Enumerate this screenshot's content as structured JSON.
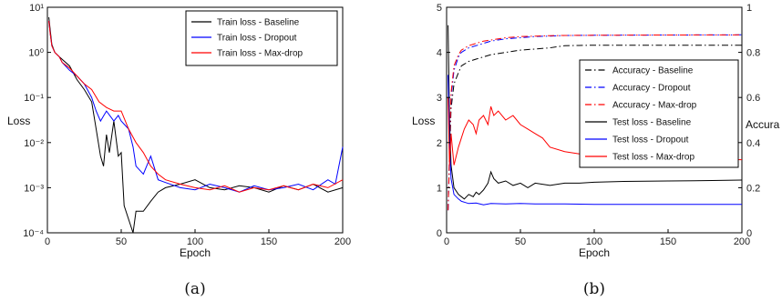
{
  "chart_data": [
    {
      "type": "line",
      "caption": "(a)",
      "xlabel": "Epoch",
      "ylabel": "Loss",
      "xlim": [
        0,
        200
      ],
      "ylim": [
        0.0001,
        10
      ],
      "yscale": "log",
      "x_ticks": [
        0,
        50,
        100,
        150,
        200
      ],
      "y_tick_labels": [
        "10⁻⁴",
        "10⁻³",
        "10⁻²",
        "10⁻¹",
        "10⁰",
        "10¹"
      ],
      "grid": false,
      "legend_position": "top-right",
      "series": [
        {
          "name": "Train loss - Baseline",
          "color": "#000000",
          "x": [
            1,
            2,
            3,
            5,
            8,
            10,
            15,
            20,
            25,
            30,
            33,
            36,
            38,
            40,
            42,
            45,
            48,
            50,
            52,
            55,
            58,
            60,
            65,
            70,
            75,
            80,
            90,
            100,
            110,
            120,
            130,
            140,
            150,
            160,
            170,
            180,
            190,
            200
          ],
          "y": [
            6,
            3,
            1.5,
            1,
            0.8,
            0.7,
            0.5,
            0.25,
            0.15,
            0.08,
            0.02,
            0.005,
            0.003,
            0.015,
            0.006,
            0.03,
            0.005,
            0.006,
            0.0004,
            0.0002,
            0.0001,
            0.0003,
            0.0003,
            0.0005,
            0.0008,
            0.001,
            0.0012,
            0.0015,
            0.001,
            0.0009,
            0.0011,
            0.001,
            0.0008,
            0.0011,
            0.0009,
            0.0012,
            0.0008,
            0.001
          ]
        },
        {
          "name": "Train loss - Dropout",
          "color": "#0000ff",
          "x": [
            1,
            2,
            3,
            5,
            8,
            10,
            15,
            20,
            25,
            30,
            33,
            36,
            40,
            45,
            48,
            50,
            55,
            58,
            60,
            65,
            70,
            75,
            80,
            90,
            100,
            110,
            120,
            130,
            140,
            150,
            160,
            170,
            180,
            190,
            195,
            200
          ],
          "y": [
            5,
            2.5,
            1.4,
            1,
            0.8,
            0.6,
            0.4,
            0.3,
            0.2,
            0.1,
            0.05,
            0.03,
            0.05,
            0.03,
            0.04,
            0.03,
            0.02,
            0.008,
            0.003,
            0.002,
            0.005,
            0.0015,
            0.0013,
            0.001,
            0.0009,
            0.0012,
            0.001,
            0.0008,
            0.0011,
            0.0009,
            0.001,
            0.0012,
            0.0009,
            0.0015,
            0.0012,
            0.008
          ]
        },
        {
          "name": "Train loss - Max-drop",
          "color": "#ff0000",
          "x": [
            1,
            2,
            3,
            5,
            8,
            10,
            15,
            20,
            25,
            30,
            35,
            40,
            45,
            50,
            55,
            60,
            65,
            70,
            75,
            80,
            90,
            100,
            110,
            120,
            130,
            140,
            150,
            160,
            170,
            180,
            190,
            200
          ],
          "y": [
            5,
            2.5,
            1.4,
            1,
            0.8,
            0.6,
            0.45,
            0.3,
            0.2,
            0.15,
            0.08,
            0.06,
            0.05,
            0.05,
            0.02,
            0.01,
            0.006,
            0.003,
            0.002,
            0.0015,
            0.0012,
            0.001,
            0.0009,
            0.0011,
            0.0008,
            0.001,
            0.0009,
            0.0011,
            0.0009,
            0.0012,
            0.001,
            0.0015
          ]
        }
      ]
    },
    {
      "type": "line",
      "caption": "(b)",
      "xlabel": "Epoch",
      "ylabel": "Loss",
      "y2label": "Accura",
      "xlim": [
        0,
        200
      ],
      "ylim": [
        0,
        5
      ],
      "y2lim": [
        0,
        1
      ],
      "x_ticks": [
        0,
        50,
        100,
        150,
        200
      ],
      "y_ticks": [
        0,
        1,
        2,
        3,
        4,
        5
      ],
      "y2_ticks": [
        0,
        0.2,
        0.4,
        0.6,
        0.8,
        1
      ],
      "grid": false,
      "legend_position": "right",
      "series": [
        {
          "name": "Accuracy - Baseline",
          "color": "#000000",
          "style": "dashdot",
          "axis": "right",
          "x": [
            1,
            3,
            5,
            8,
            10,
            15,
            20,
            25,
            30,
            40,
            50,
            60,
            70,
            80,
            100,
            150,
            200
          ],
          "y": [
            0.1,
            0.55,
            0.66,
            0.71,
            0.74,
            0.76,
            0.77,
            0.78,
            0.79,
            0.8,
            0.81,
            0.815,
            0.82,
            0.83,
            0.832,
            0.832,
            0.832
          ]
        },
        {
          "name": "Accuracy - Dropout",
          "color": "#0000ff",
          "style": "dashdot",
          "axis": "right",
          "x": [
            1,
            3,
            5,
            8,
            10,
            15,
            20,
            25,
            30,
            40,
            50,
            60,
            70,
            80,
            100,
            150,
            200
          ],
          "y": [
            0.1,
            0.6,
            0.72,
            0.78,
            0.8,
            0.82,
            0.83,
            0.84,
            0.85,
            0.86,
            0.865,
            0.87,
            0.872,
            0.875,
            0.876,
            0.877,
            0.878
          ]
        },
        {
          "name": "Accuracy - Max-drop",
          "color": "#ff0000",
          "style": "dashdot",
          "axis": "right",
          "x": [
            1,
            3,
            5,
            8,
            10,
            15,
            20,
            25,
            30,
            40,
            50,
            60,
            70,
            80,
            100,
            150,
            200
          ],
          "y": [
            0.1,
            0.62,
            0.74,
            0.79,
            0.81,
            0.83,
            0.84,
            0.85,
            0.855,
            0.865,
            0.87,
            0.872,
            0.874,
            0.875,
            0.876,
            0.877,
            0.878
          ]
        },
        {
          "name": "Test loss - Baseline",
          "color": "#000000",
          "style": "solid",
          "axis": "left",
          "x": [
            1,
            2,
            3,
            5,
            8,
            10,
            12,
            15,
            18,
            20,
            22,
            25,
            28,
            30,
            32,
            35,
            40,
            45,
            50,
            55,
            60,
            70,
            80,
            90,
            100,
            120,
            150,
            180,
            200
          ],
          "y": [
            4.6,
            2.5,
            1.5,
            1,
            0.85,
            0.8,
            0.75,
            0.85,
            0.8,
            0.9,
            0.85,
            0.95,
            1.1,
            1.35,
            1.2,
            1.1,
            1.15,
            1.05,
            1.1,
            1.0,
            1.1,
            1.05,
            1.1,
            1.1,
            1.12,
            1.14,
            1.15,
            1.16,
            1.17
          ]
        },
        {
          "name": "Test loss - Dropout",
          "color": "#0000ff",
          "style": "solid",
          "axis": "left",
          "x": [
            1,
            2,
            3,
            5,
            8,
            10,
            12,
            15,
            20,
            25,
            30,
            40,
            50,
            60,
            80,
            100,
            150,
            200
          ],
          "y": [
            3.5,
            2,
            1.2,
            0.85,
            0.75,
            0.7,
            0.68,
            0.65,
            0.66,
            0.62,
            0.65,
            0.64,
            0.65,
            0.64,
            0.64,
            0.63,
            0.63,
            0.63
          ]
        },
        {
          "name": "Test loss - Max-drop",
          "color": "#ff0000",
          "style": "solid",
          "axis": "left",
          "x": [
            1,
            2,
            3,
            5,
            8,
            10,
            12,
            15,
            18,
            20,
            22,
            25,
            28,
            30,
            32,
            35,
            40,
            45,
            50,
            55,
            60,
            65,
            70,
            80,
            90,
            100,
            120,
            150,
            180,
            200
          ],
          "y": [
            3,
            1.5,
            2.2,
            1.5,
            1.9,
            2.1,
            2.3,
            2.5,
            2.4,
            2.2,
            2.5,
            2.6,
            2.4,
            2.8,
            2.6,
            2.7,
            2.5,
            2.6,
            2.4,
            2.3,
            2.2,
            2.1,
            1.9,
            1.8,
            1.75,
            1.7,
            1.68,
            1.65,
            1.63,
            1.62
          ]
        }
      ]
    }
  ]
}
